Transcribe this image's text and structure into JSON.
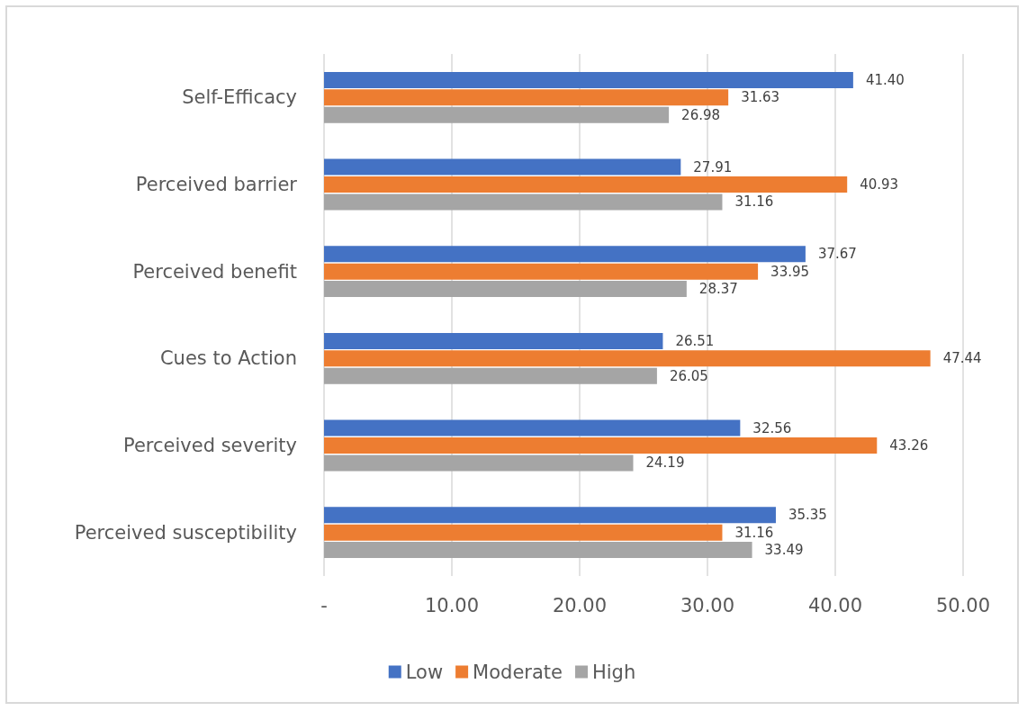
{
  "chart_data": {
    "type": "bar",
    "orientation": "horizontal",
    "categories": [
      "Self-Efficacy",
      "Perceived barrier",
      "Perceived benefit",
      "Cues to Action",
      "Perceived severity",
      "Perceived susceptibility"
    ],
    "series": [
      {
        "name": "Low",
        "color": "#4472c4",
        "values": [
          41.4,
          27.91,
          37.67,
          26.51,
          32.56,
          35.35
        ],
        "value_labels": [
          "41.40",
          "27.91",
          "37.67",
          "26.51",
          "32.56",
          "35.35"
        ]
      },
      {
        "name": "Moderate",
        "color": "#ed7d31",
        "values": [
          31.63,
          40.93,
          33.95,
          47.44,
          43.26,
          31.16
        ],
        "value_labels": [
          "31.63",
          "40.93",
          "33.95",
          "47.44",
          "43.26",
          "31.16"
        ]
      },
      {
        "name": "High",
        "color": "#a5a5a5",
        "values": [
          26.98,
          31.16,
          28.37,
          26.05,
          24.19,
          33.49
        ],
        "value_labels": [
          "26.98",
          "31.16",
          "28.37",
          "26.05",
          "24.19",
          "33.49"
        ]
      }
    ],
    "xlim": [
      0,
      50
    ],
    "xticks": [
      {
        "value": 0,
        "label": "-"
      },
      {
        "value": 10,
        "label": "10.00"
      },
      {
        "value": 20,
        "label": "20.00"
      },
      {
        "value": 30,
        "label": "30.00"
      },
      {
        "value": 40,
        "label": "40.00"
      },
      {
        "value": 50,
        "label": "50.00"
      }
    ],
    "grid": "x",
    "legend": "bottom"
  }
}
